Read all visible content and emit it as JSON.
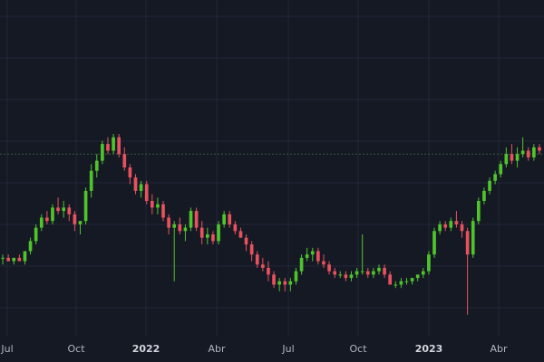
{
  "chart_data": {
    "type": "candlestick",
    "grid": true,
    "legend": "none",
    "colors": {
      "background": "#151924",
      "grid": "#232838",
      "up": "#4fc52c",
      "down": "#e8525f",
      "reference_line": "#3f5a3a",
      "tick_label": "#b2b5be"
    },
    "x_tick_labels": [
      "Jul",
      "Oct",
      "2022",
      "Abr",
      "Jul",
      "Oct",
      "2023",
      "Abr"
    ],
    "year_ticks": [
      "2022",
      "2023"
    ],
    "reference_line_y": 54,
    "ylim": [
      0,
      100
    ],
    "candles": [
      {
        "o": 23,
        "h": 24,
        "l": 21,
        "c": 23
      },
      {
        "o": 23,
        "h": 24,
        "l": 22,
        "c": 22
      },
      {
        "o": 22,
        "h": 23,
        "l": 21,
        "c": 23
      },
      {
        "o": 23,
        "h": 24,
        "l": 22,
        "c": 22
      },
      {
        "o": 22,
        "h": 24,
        "l": 21,
        "c": 25
      },
      {
        "o": 25,
        "h": 29,
        "l": 24,
        "c": 28
      },
      {
        "o": 28,
        "h": 33,
        "l": 27,
        "c": 32
      },
      {
        "o": 32,
        "h": 36,
        "l": 31,
        "c": 35
      },
      {
        "o": 35,
        "h": 37,
        "l": 33,
        "c": 34
      },
      {
        "o": 34,
        "h": 39,
        "l": 33,
        "c": 38
      },
      {
        "o": 38,
        "h": 41,
        "l": 36,
        "c": 37
      },
      {
        "o": 37,
        "h": 40,
        "l": 35,
        "c": 38
      },
      {
        "o": 38,
        "h": 39,
        "l": 34,
        "c": 36
      },
      {
        "o": 36,
        "h": 37,
        "l": 31,
        "c": 33
      },
      {
        "o": 33,
        "h": 34,
        "l": 30,
        "c": 34
      },
      {
        "o": 34,
        "h": 44,
        "l": 33,
        "c": 43
      },
      {
        "o": 43,
        "h": 51,
        "l": 41,
        "c": 49
      },
      {
        "o": 49,
        "h": 54,
        "l": 47,
        "c": 52
      },
      {
        "o": 52,
        "h": 58,
        "l": 51,
        "c": 57
      },
      {
        "o": 57,
        "h": 59,
        "l": 54,
        "c": 55
      },
      {
        "o": 55,
        "h": 60,
        "l": 54,
        "c": 59
      },
      {
        "o": 59,
        "h": 60,
        "l": 53,
        "c": 54
      },
      {
        "o": 54,
        "h": 56,
        "l": 49,
        "c": 50
      },
      {
        "o": 50,
        "h": 51,
        "l": 45,
        "c": 47
      },
      {
        "o": 47,
        "h": 48,
        "l": 42,
        "c": 43
      },
      {
        "o": 43,
        "h": 46,
        "l": 41,
        "c": 45
      },
      {
        "o": 45,
        "h": 46,
        "l": 39,
        "c": 40
      },
      {
        "o": 40,
        "h": 42,
        "l": 36,
        "c": 38
      },
      {
        "o": 38,
        "h": 41,
        "l": 36,
        "c": 39
      },
      {
        "o": 39,
        "h": 40,
        "l": 34,
        "c": 35
      },
      {
        "o": 35,
        "h": 36,
        "l": 30,
        "c": 32
      },
      {
        "o": 32,
        "h": 34,
        "l": 16,
        "c": 33
      },
      {
        "o": 33,
        "h": 35,
        "l": 30,
        "c": 31
      },
      {
        "o": 31,
        "h": 33,
        "l": 28,
        "c": 32
      },
      {
        "o": 32,
        "h": 38,
        "l": 31,
        "c": 37
      },
      {
        "o": 37,
        "h": 38,
        "l": 31,
        "c": 32
      },
      {
        "o": 32,
        "h": 34,
        "l": 27,
        "c": 29
      },
      {
        "o": 29,
        "h": 32,
        "l": 27,
        "c": 30
      },
      {
        "o": 30,
        "h": 31,
        "l": 27,
        "c": 28
      },
      {
        "o": 28,
        "h": 34,
        "l": 27,
        "c": 33
      },
      {
        "o": 33,
        "h": 37,
        "l": 32,
        "c": 36
      },
      {
        "o": 36,
        "h": 37,
        "l": 32,
        "c": 33
      },
      {
        "o": 33,
        "h": 34,
        "l": 30,
        "c": 31
      },
      {
        "o": 31,
        "h": 32,
        "l": 29,
        "c": 29
      },
      {
        "o": 29,
        "h": 30,
        "l": 25,
        "c": 27
      },
      {
        "o": 27,
        "h": 28,
        "l": 22,
        "c": 24
      },
      {
        "o": 24,
        "h": 25,
        "l": 20,
        "c": 21
      },
      {
        "o": 21,
        "h": 23,
        "l": 19,
        "c": 20
      },
      {
        "o": 20,
        "h": 22,
        "l": 16,
        "c": 18
      },
      {
        "o": 18,
        "h": 19,
        "l": 14,
        "c": 15
      },
      {
        "o": 15,
        "h": 17,
        "l": 13,
        "c": 16
      },
      {
        "o": 16,
        "h": 17,
        "l": 13,
        "c": 15
      },
      {
        "o": 15,
        "h": 17,
        "l": 13,
        "c": 16
      },
      {
        "o": 16,
        "h": 20,
        "l": 15,
        "c": 19
      },
      {
        "o": 19,
        "h": 24,
        "l": 18,
        "c": 23
      },
      {
        "o": 23,
        "h": 26,
        "l": 22,
        "c": 24
      },
      {
        "o": 24,
        "h": 26,
        "l": 22,
        "c": 25
      },
      {
        "o": 25,
        "h": 26,
        "l": 21,
        "c": 22
      },
      {
        "o": 22,
        "h": 24,
        "l": 20,
        "c": 21
      },
      {
        "o": 21,
        "h": 22,
        "l": 18,
        "c": 19
      },
      {
        "o": 19,
        "h": 20,
        "l": 17,
        "c": 18
      },
      {
        "o": 18,
        "h": 19,
        "l": 17,
        "c": 18
      },
      {
        "o": 18,
        "h": 19,
        "l": 16,
        "c": 17
      },
      {
        "o": 17,
        "h": 19,
        "l": 16,
        "c": 18
      },
      {
        "o": 18,
        "h": 20,
        "l": 17,
        "c": 19
      },
      {
        "o": 19,
        "h": 30,
        "l": 18,
        "c": 19
      },
      {
        "o": 19,
        "h": 20,
        "l": 17,
        "c": 18
      },
      {
        "o": 18,
        "h": 20,
        "l": 17,
        "c": 19
      },
      {
        "o": 19,
        "h": 21,
        "l": 18,
        "c": 20
      },
      {
        "o": 20,
        "h": 21,
        "l": 17,
        "c": 18
      },
      {
        "o": 18,
        "h": 19,
        "l": 15,
        "c": 15
      },
      {
        "o": 15,
        "h": 16,
        "l": 14,
        "c": 15
      },
      {
        "o": 15,
        "h": 17,
        "l": 14,
        "c": 16
      },
      {
        "o": 16,
        "h": 17,
        "l": 15,
        "c": 16
      },
      {
        "o": 16,
        "h": 17,
        "l": 15,
        "c": 17
      },
      {
        "o": 17,
        "h": 18,
        "l": 16,
        "c": 18
      },
      {
        "o": 18,
        "h": 20,
        "l": 17,
        "c": 19
      },
      {
        "o": 19,
        "h": 25,
        "l": 18,
        "c": 24
      },
      {
        "o": 24,
        "h": 32,
        "l": 23,
        "c": 31
      },
      {
        "o": 31,
        "h": 34,
        "l": 30,
        "c": 33
      },
      {
        "o": 33,
        "h": 34,
        "l": 31,
        "c": 32
      },
      {
        "o": 32,
        "h": 35,
        "l": 31,
        "c": 34
      },
      {
        "o": 34,
        "h": 37,
        "l": 32,
        "c": 33
      },
      {
        "o": 33,
        "h": 34,
        "l": 29,
        "c": 31
      },
      {
        "o": 31,
        "h": 32,
        "l": 6,
        "c": 24
      },
      {
        "o": 24,
        "h": 35,
        "l": 23,
        "c": 34
      },
      {
        "o": 34,
        "h": 41,
        "l": 33,
        "c": 40
      },
      {
        "o": 40,
        "h": 44,
        "l": 39,
        "c": 43
      },
      {
        "o": 43,
        "h": 47,
        "l": 42,
        "c": 46
      },
      {
        "o": 46,
        "h": 49,
        "l": 45,
        "c": 48
      },
      {
        "o": 48,
        "h": 52,
        "l": 47,
        "c": 51
      },
      {
        "o": 51,
        "h": 56,
        "l": 50,
        "c": 54
      },
      {
        "o": 54,
        "h": 57,
        "l": 51,
        "c": 52
      },
      {
        "o": 52,
        "h": 56,
        "l": 50,
        "c": 54
      },
      {
        "o": 54,
        "h": 59,
        "l": 53,
        "c": 55
      },
      {
        "o": 55,
        "h": 56,
        "l": 52,
        "c": 53
      },
      {
        "o": 53,
        "h": 57,
        "l": 52,
        "c": 56
      },
      {
        "o": 56,
        "h": 57,
        "l": 54,
        "c": 55
      }
    ]
  }
}
